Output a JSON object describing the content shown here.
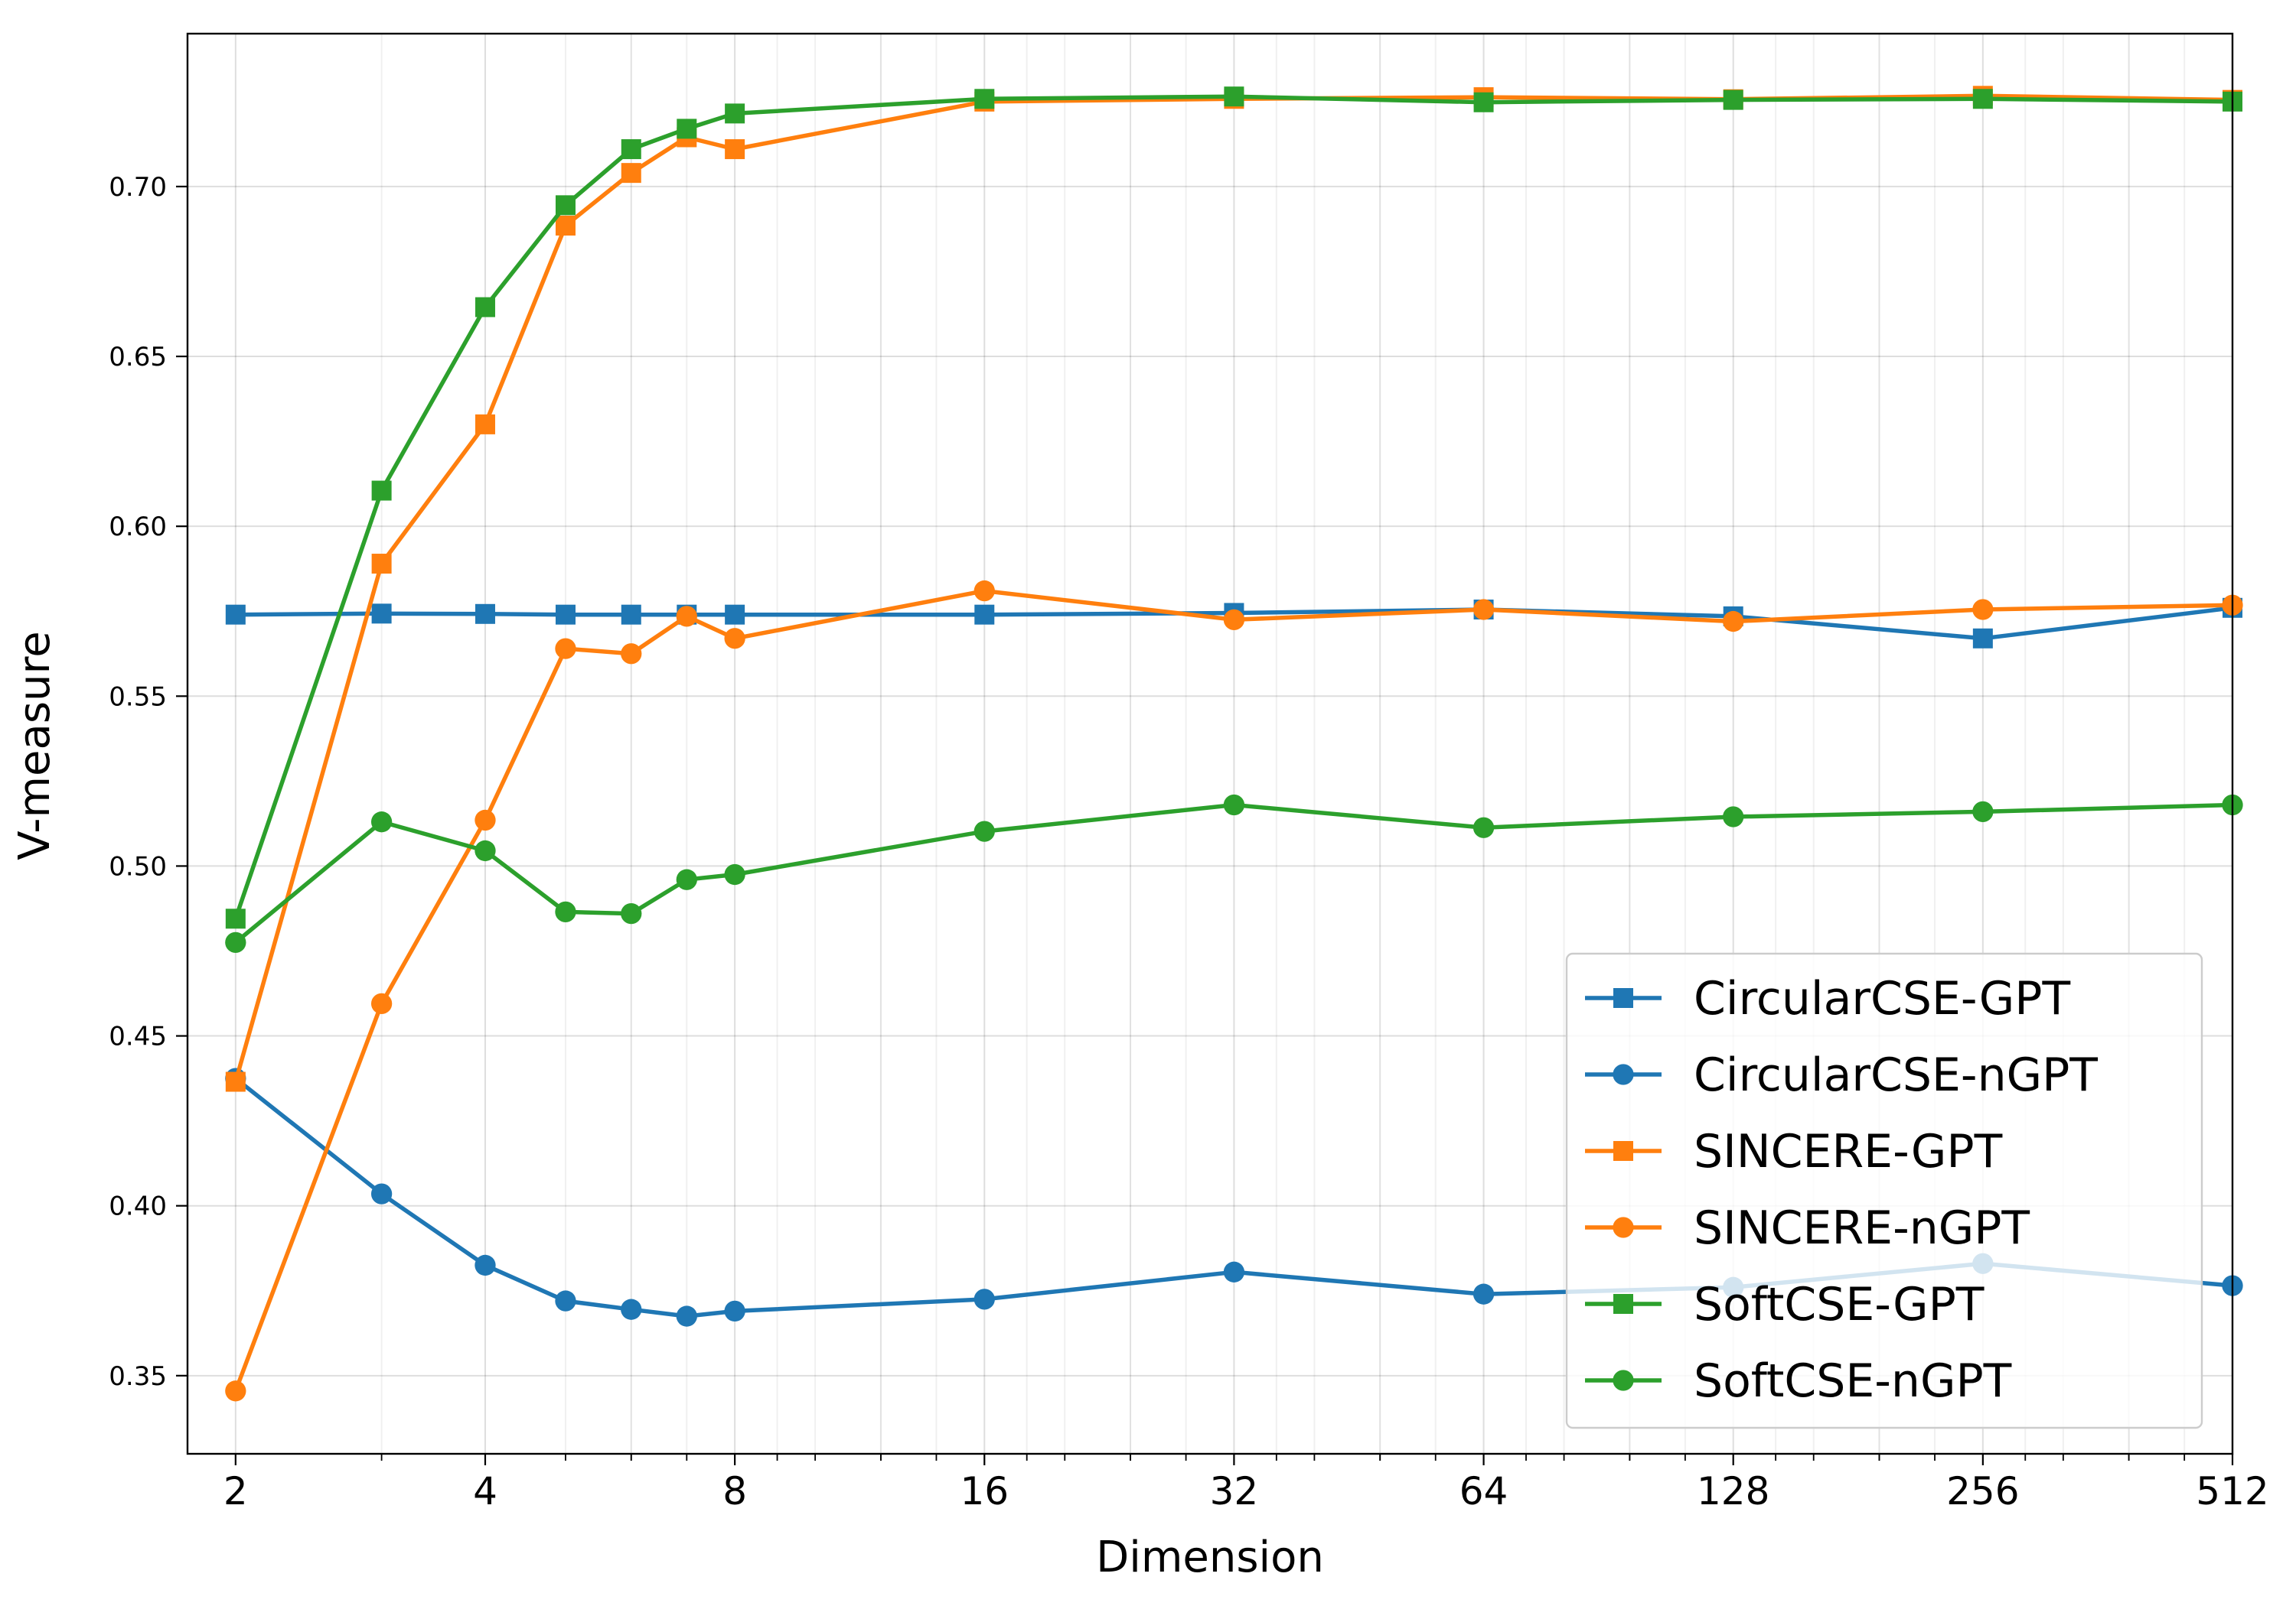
{
  "chart_data": {
    "type": "line",
    "title": "",
    "xlabel": "Dimension",
    "ylabel": "V-measure",
    "x_scale": "log2",
    "xlim": [
      1.75,
      512
    ],
    "ylim": [
      0.327,
      0.745
    ],
    "grid": true,
    "legend_position": "lower-right",
    "x_ticks": [
      2,
      4,
      8,
      16,
      32,
      64,
      128,
      256,
      512
    ],
    "x_tick_labels": [
      "2",
      "4",
      "8",
      "16",
      "32",
      "64",
      "128",
      "256",
      "512"
    ],
    "y_ticks": [
      0.35,
      0.4,
      0.45,
      0.5,
      0.55,
      0.6,
      0.65,
      0.7
    ],
    "y_tick_labels": [
      "0.35",
      "0.40",
      "0.45",
      "0.50",
      "0.55",
      "0.60",
      "0.65",
      "0.70"
    ],
    "x": [
      2,
      3,
      4,
      5,
      6,
      7,
      8,
      16,
      32,
      64,
      128,
      256,
      512
    ],
    "series": [
      {
        "name": "CircularCSE-GPT",
        "color": "#1f77b4",
        "marker": "square",
        "values": [
          0.574,
          0.5743,
          0.5742,
          0.574,
          0.574,
          0.574,
          0.574,
          0.574,
          0.5745,
          0.5755,
          0.5735,
          0.567,
          0.576
        ]
      },
      {
        "name": "CircularCSE-nGPT",
        "color": "#1f77b4",
        "marker": "circle",
        "values": [
          0.4375,
          0.4035,
          0.3825,
          0.372,
          0.3695,
          0.3675,
          0.369,
          0.3725,
          0.3805,
          0.374,
          0.376,
          0.383,
          0.3765
        ]
      },
      {
        "name": "SINCERE-GPT",
        "color": "#ff7f0e",
        "marker": "square",
        "values": [
          0.4365,
          0.589,
          0.63,
          0.6885,
          0.704,
          0.7145,
          0.711,
          0.725,
          0.7258,
          0.7263,
          0.7257,
          0.7267,
          0.7255
        ]
      },
      {
        "name": "SINCERE-nGPT",
        "color": "#ff7f0e",
        "marker": "circle",
        "values": [
          0.3455,
          0.4595,
          0.5135,
          0.564,
          0.5625,
          0.5735,
          0.567,
          0.581,
          0.5725,
          0.5755,
          0.572,
          0.5755,
          0.5768
        ]
      },
      {
        "name": "SoftCSE-GPT",
        "color": "#2ca02c",
        "marker": "square",
        "values": [
          0.4845,
          0.6105,
          0.6645,
          0.6945,
          0.711,
          0.717,
          0.7215,
          0.7258,
          0.7265,
          0.7248,
          0.7255,
          0.7258,
          0.725
        ]
      },
      {
        "name": "SoftCSE-nGPT",
        "color": "#2ca02c",
        "marker": "circle",
        "values": [
          0.4775,
          0.513,
          0.5045,
          0.4865,
          0.486,
          0.496,
          0.4975,
          0.5102,
          0.518,
          0.5113,
          0.5145,
          0.516,
          0.518
        ]
      }
    ]
  }
}
